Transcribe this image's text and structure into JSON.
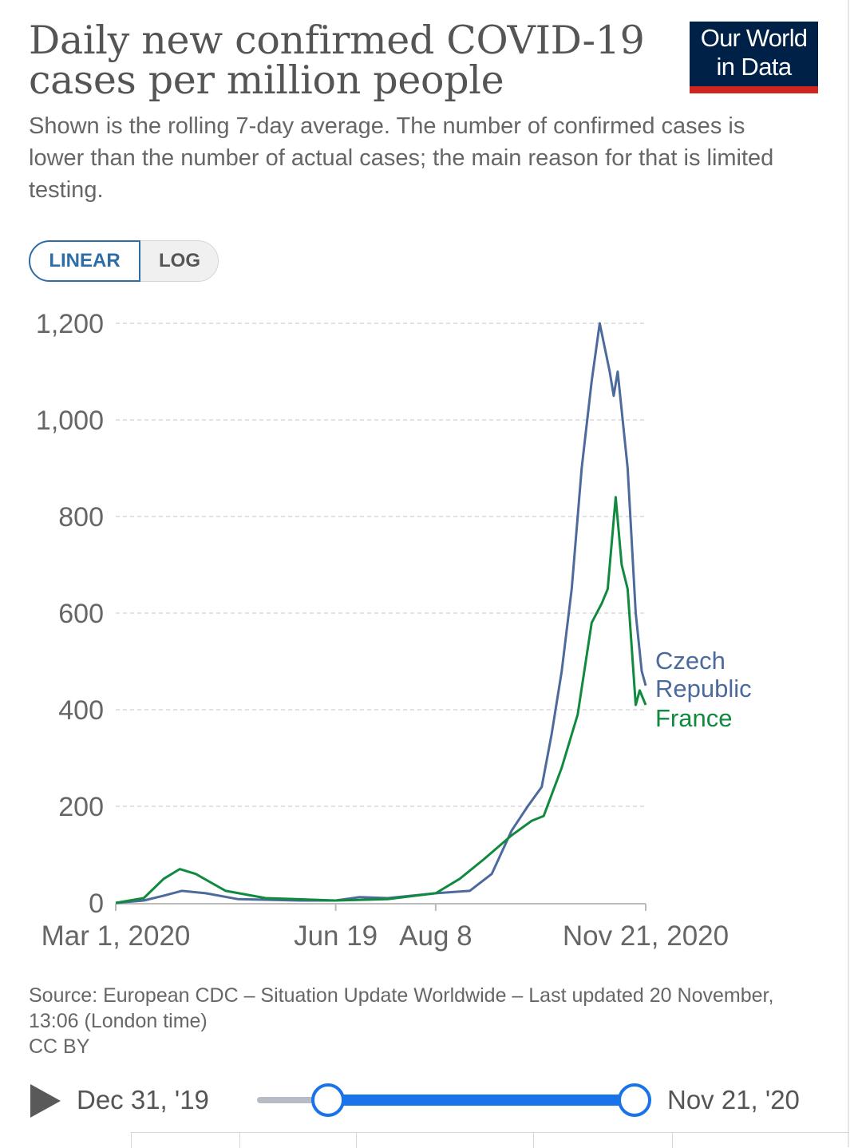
{
  "title": "Daily new confirmed COVID-19 cases per million people",
  "subtitle": "Shown is the rolling 7-day average. The number of confirmed cases is lower than the number of actual cases; the main reason for that is limited testing.",
  "logo": {
    "line1": "Our World",
    "line2": "in Data"
  },
  "scale_toggle": {
    "linear": "LINEAR",
    "log": "LOG",
    "selected": "LINEAR"
  },
  "source": "Source: European CDC – Situation Update Worldwide – Last updated 20 November, 13:06 (London time)",
  "license": "CC BY",
  "timeline": {
    "start": "Dec 31, '19",
    "end": "Nov 21, '20"
  },
  "chart_data": {
    "type": "line",
    "grid": true,
    "y_ticks": [
      "0",
      "200",
      "400",
      "600",
      "800",
      "1,000",
      "1,200"
    ],
    "x_ticks": [
      "Mar 1, 2020",
      "Jun 19",
      "Aug 8",
      "Nov 21, 2020"
    ],
    "ylim": [
      0,
      1200
    ],
    "series": [
      {
        "name": "Czech Republic",
        "color": "#4c6a9c",
        "points": [
          [
            "2020-03-01",
            0
          ],
          [
            "2020-03-15",
            5
          ],
          [
            "2020-03-25",
            15
          ],
          [
            "2020-04-03",
            25
          ],
          [
            "2020-04-15",
            20
          ],
          [
            "2020-05-01",
            8
          ],
          [
            "2020-06-01",
            5
          ],
          [
            "2020-06-19",
            5
          ],
          [
            "2020-07-01",
            12
          ],
          [
            "2020-07-15",
            10
          ],
          [
            "2020-08-08",
            20
          ],
          [
            "2020-08-25",
            25
          ],
          [
            "2020-09-05",
            60
          ],
          [
            "2020-09-15",
            150
          ],
          [
            "2020-09-23",
            200
          ],
          [
            "2020-09-30",
            240
          ],
          [
            "2020-10-05",
            350
          ],
          [
            "2020-10-10",
            480
          ],
          [
            "2020-10-15",
            650
          ],
          [
            "2020-10-20",
            900
          ],
          [
            "2020-10-25",
            1080
          ],
          [
            "2020-10-29",
            1200
          ],
          [
            "2020-11-03",
            1100
          ],
          [
            "2020-11-05",
            1050
          ],
          [
            "2020-11-07",
            1100
          ],
          [
            "2020-11-12",
            900
          ],
          [
            "2020-11-16",
            600
          ],
          [
            "2020-11-19",
            480
          ],
          [
            "2020-11-21",
            450
          ]
        ]
      },
      {
        "name": "France",
        "color": "#108a3e",
        "points": [
          [
            "2020-03-01",
            0
          ],
          [
            "2020-03-15",
            10
          ],
          [
            "2020-03-25",
            50
          ],
          [
            "2020-04-02",
            70
          ],
          [
            "2020-04-10",
            60
          ],
          [
            "2020-04-25",
            25
          ],
          [
            "2020-05-15",
            10
          ],
          [
            "2020-06-19",
            5
          ],
          [
            "2020-07-15",
            8
          ],
          [
            "2020-08-08",
            20
          ],
          [
            "2020-08-20",
            50
          ],
          [
            "2020-09-01",
            90
          ],
          [
            "2020-09-15",
            140
          ],
          [
            "2020-09-25",
            170
          ],
          [
            "2020-10-01",
            180
          ],
          [
            "2020-10-10",
            280
          ],
          [
            "2020-10-18",
            390
          ],
          [
            "2020-10-25",
            580
          ],
          [
            "2020-10-30",
            620
          ],
          [
            "2020-11-02",
            650
          ],
          [
            "2020-11-06",
            840
          ],
          [
            "2020-11-09",
            700
          ],
          [
            "2020-11-12",
            650
          ],
          [
            "2020-11-16",
            410
          ],
          [
            "2020-11-18",
            440
          ],
          [
            "2020-11-21",
            410
          ]
        ]
      }
    ]
  }
}
